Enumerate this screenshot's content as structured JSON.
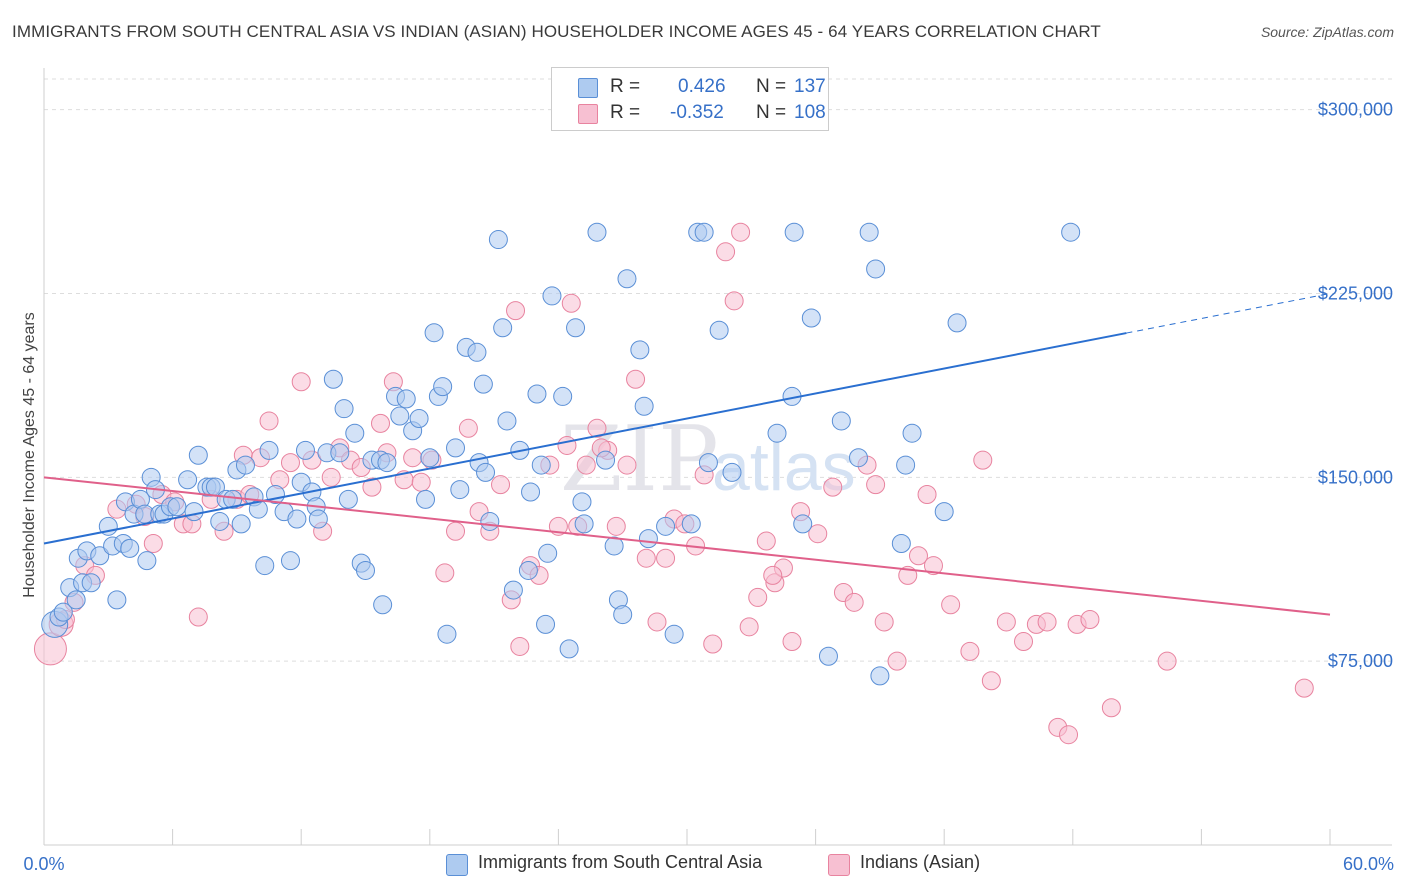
{
  "title": "IMMIGRANTS FROM SOUTH CENTRAL ASIA VS INDIAN (ASIAN) HOUSEHOLDER INCOME AGES 45 - 64 YEARS CORRELATION CHART",
  "source": "Source: ZipAtlas.com",
  "watermark": {
    "zip": "ZIP",
    "atlas": "atlas"
  },
  "legend": {
    "rows": [
      {
        "r_label": "R =",
        "r_value": "0.426",
        "n_label": "N =",
        "n_value": "137"
      },
      {
        "r_label": "R =",
        "r_value": "-0.352",
        "n_label": "N =",
        "n_value": "108"
      }
    ]
  },
  "colors": {
    "blue_fill": "#aecbf0",
    "blue_stroke": "#5a8fd6",
    "blue_line": "#2a6fd0",
    "pink_fill": "#f7c0d2",
    "pink_stroke": "#e8839f",
    "pink_line": "#e0608a",
    "axis_text": "#3670c8",
    "grid": "#dddddd"
  },
  "chart_data": {
    "type": "scatter",
    "title": "IMMIGRANTS FROM SOUTH CENTRAL ASIA VS INDIAN (ASIAN) HOUSEHOLDER INCOME AGES 45 - 64 YEARS CORRELATION CHART",
    "xlabel": "",
    "ylabel": "Householder Income Ages 45 - 64 years",
    "xlim": [
      0,
      60
    ],
    "ylim": [
      0,
      312500
    ],
    "x_tick_labels": [
      {
        "value": 0,
        "label": "0.0%"
      },
      {
        "value": 60,
        "label": "60.0%"
      }
    ],
    "x_minor_ticks": [
      6,
      12,
      18,
      24,
      30,
      36,
      42,
      48,
      54,
      60
    ],
    "y_ticks": [
      {
        "value": 75000,
        "label": "$75,000"
      },
      {
        "value": 150000,
        "label": "$150,000"
      },
      {
        "value": 225000,
        "label": "$225,000"
      },
      {
        "value": 300000,
        "label": "$300,000"
      }
    ],
    "series": [
      {
        "name": "Immigrants from South Central Asia",
        "color": "blue",
        "trend": {
          "x0": 0,
          "y0": 123000,
          "x1": 60,
          "y1": 225000,
          "solid_until": 50.5
        },
        "points": [
          [
            0.5,
            90000
          ],
          [
            0.7,
            93000
          ],
          [
            0.9,
            95000
          ],
          [
            1.2,
            105000
          ],
          [
            1.5,
            100000
          ],
          [
            1.6,
            117000
          ],
          [
            1.8,
            107000
          ],
          [
            2.0,
            120000
          ],
          [
            2.2,
            107000
          ],
          [
            2.6,
            118000
          ],
          [
            3.0,
            130000
          ],
          [
            3.2,
            122000
          ],
          [
            3.4,
            100000
          ],
          [
            3.7,
            123000
          ],
          [
            3.8,
            140000
          ],
          [
            4.0,
            121000
          ],
          [
            4.2,
            135000
          ],
          [
            4.5,
            141000
          ],
          [
            4.7,
            135000
          ],
          [
            4.8,
            116000
          ],
          [
            5.0,
            150000
          ],
          [
            5.2,
            145000
          ],
          [
            5.4,
            135000
          ],
          [
            5.6,
            135000
          ],
          [
            5.9,
            138000
          ],
          [
            6.2,
            138000
          ],
          [
            6.7,
            149000
          ],
          [
            7.0,
            136000
          ],
          [
            7.2,
            159000
          ],
          [
            7.6,
            146000
          ],
          [
            7.8,
            146000
          ],
          [
            8.0,
            146000
          ],
          [
            8.2,
            132000
          ],
          [
            8.5,
            141000
          ],
          [
            8.8,
            141000
          ],
          [
            9.0,
            153000
          ],
          [
            9.2,
            131000
          ],
          [
            9.4,
            155000
          ],
          [
            9.8,
            142000
          ],
          [
            10.0,
            137000
          ],
          [
            10.3,
            114000
          ],
          [
            10.5,
            161000
          ],
          [
            10.8,
            143000
          ],
          [
            11.2,
            136000
          ],
          [
            11.5,
            116000
          ],
          [
            11.8,
            133000
          ],
          [
            12.0,
            148000
          ],
          [
            12.2,
            161000
          ],
          [
            12.5,
            144000
          ],
          [
            12.7,
            138000
          ],
          [
            12.8,
            133000
          ],
          [
            13.2,
            160000
          ],
          [
            13.5,
            190000
          ],
          [
            13.8,
            160000
          ],
          [
            14.0,
            178000
          ],
          [
            14.2,
            141000
          ],
          [
            14.5,
            168000
          ],
          [
            14.8,
            115000
          ],
          [
            15.0,
            112000
          ],
          [
            15.3,
            157000
          ],
          [
            15.7,
            157000
          ],
          [
            15.8,
            98000
          ],
          [
            16.0,
            156000
          ],
          [
            16.4,
            183000
          ],
          [
            16.6,
            175000
          ],
          [
            16.9,
            182000
          ],
          [
            17.2,
            169000
          ],
          [
            17.5,
            174000
          ],
          [
            17.8,
            141000
          ],
          [
            18.0,
            158000
          ],
          [
            18.2,
            209000
          ],
          [
            18.4,
            183000
          ],
          [
            18.6,
            187000
          ],
          [
            18.8,
            86000
          ],
          [
            19.2,
            162000
          ],
          [
            19.4,
            145000
          ],
          [
            19.7,
            203000
          ],
          [
            20.2,
            201000
          ],
          [
            20.3,
            156000
          ],
          [
            20.5,
            188000
          ],
          [
            20.6,
            152000
          ],
          [
            20.8,
            132000
          ],
          [
            21.2,
            247000
          ],
          [
            21.4,
            211000
          ],
          [
            21.6,
            173000
          ],
          [
            21.9,
            104000
          ],
          [
            22.2,
            161000
          ],
          [
            22.6,
            112000
          ],
          [
            22.7,
            144000
          ],
          [
            23.0,
            184000
          ],
          [
            23.2,
            155000
          ],
          [
            23.4,
            90000
          ],
          [
            23.5,
            119000
          ],
          [
            23.7,
            224000
          ],
          [
            24.2,
            183000
          ],
          [
            24.5,
            80000
          ],
          [
            24.8,
            211000
          ],
          [
            25.1,
            140000
          ],
          [
            25.2,
            131000
          ],
          [
            25.8,
            250000
          ],
          [
            26.2,
            157000
          ],
          [
            26.6,
            122000
          ],
          [
            26.8,
            100000
          ],
          [
            27.0,
            94000
          ],
          [
            27.2,
            231000
          ],
          [
            27.8,
            202000
          ],
          [
            28.0,
            179000
          ],
          [
            28.2,
            125000
          ],
          [
            29.0,
            130000
          ],
          [
            29.4,
            86000
          ],
          [
            30.2,
            131000
          ],
          [
            30.5,
            250000
          ],
          [
            30.8,
            250000
          ],
          [
            31.0,
            156000
          ],
          [
            31.5,
            210000
          ],
          [
            32.1,
            152000
          ],
          [
            34.2,
            168000
          ],
          [
            34.9,
            183000
          ],
          [
            35.0,
            250000
          ],
          [
            35.4,
            131000
          ],
          [
            35.8,
            215000
          ],
          [
            36.6,
            77000
          ],
          [
            37.2,
            173000
          ],
          [
            38.0,
            158000
          ],
          [
            38.5,
            250000
          ],
          [
            38.8,
            235000
          ],
          [
            39.0,
            69000
          ],
          [
            40.0,
            123000
          ],
          [
            40.2,
            155000
          ],
          [
            40.5,
            168000
          ],
          [
            42.0,
            136000
          ],
          [
            42.6,
            213000
          ],
          [
            47.9,
            250000
          ]
        ]
      },
      {
        "name": "Indians (Asian)",
        "color": "pink",
        "trend": {
          "x0": 0,
          "y0": 150000,
          "x1": 60,
          "y1": 94000
        },
        "points": [
          [
            0.3,
            80000
          ],
          [
            0.8,
            90000
          ],
          [
            1.0,
            92000
          ],
          [
            1.4,
            99000
          ],
          [
            1.9,
            114000
          ],
          [
            2.4,
            110000
          ],
          [
            3.4,
            137000
          ],
          [
            4.3,
            139000
          ],
          [
            4.7,
            134000
          ],
          [
            5.1,
            123000
          ],
          [
            5.5,
            143000
          ],
          [
            6.1,
            140000
          ],
          [
            6.5,
            131000
          ],
          [
            6.9,
            131000
          ],
          [
            7.2,
            93000
          ],
          [
            7.8,
            141000
          ],
          [
            8.4,
            128000
          ],
          [
            9.0,
            141000
          ],
          [
            9.3,
            159000
          ],
          [
            9.6,
            143000
          ],
          [
            10.1,
            158000
          ],
          [
            10.5,
            173000
          ],
          [
            11.0,
            149000
          ],
          [
            11.5,
            156000
          ],
          [
            12.0,
            189000
          ],
          [
            12.5,
            157000
          ],
          [
            13.0,
            128000
          ],
          [
            13.4,
            150000
          ],
          [
            13.8,
            162000
          ],
          [
            14.3,
            157000
          ],
          [
            14.8,
            154000
          ],
          [
            15.3,
            146000
          ],
          [
            15.7,
            172000
          ],
          [
            16.0,
            160000
          ],
          [
            16.3,
            189000
          ],
          [
            16.8,
            149000
          ],
          [
            17.2,
            158000
          ],
          [
            17.6,
            148000
          ],
          [
            18.1,
            157000
          ],
          [
            18.7,
            111000
          ],
          [
            19.2,
            128000
          ],
          [
            19.8,
            170000
          ],
          [
            20.3,
            136000
          ],
          [
            20.8,
            128000
          ],
          [
            21.3,
            147000
          ],
          [
            21.8,
            100000
          ],
          [
            22.2,
            81000
          ],
          [
            22.7,
            114000
          ],
          [
            23.1,
            110000
          ],
          [
            23.6,
            155000
          ],
          [
            24.0,
            130000
          ],
          [
            24.4,
            163000
          ],
          [
            24.9,
            130000
          ],
          [
            25.3,
            155000
          ],
          [
            25.8,
            170000
          ],
          [
            26.3,
            161000
          ],
          [
            26.7,
            130000
          ],
          [
            27.2,
            155000
          ],
          [
            27.6,
            190000
          ],
          [
            28.1,
            117000
          ],
          [
            28.6,
            91000
          ],
          [
            29.0,
            117000
          ],
          [
            29.4,
            133000
          ],
          [
            29.9,
            131000
          ],
          [
            30.4,
            122000
          ],
          [
            30.8,
            151000
          ],
          [
            31.2,
            82000
          ],
          [
            31.8,
            242000
          ],
          [
            32.2,
            222000
          ],
          [
            32.5,
            250000
          ],
          [
            32.9,
            89000
          ],
          [
            33.3,
            101000
          ],
          [
            33.7,
            124000
          ],
          [
            34.1,
            107000
          ],
          [
            34.5,
            113000
          ],
          [
            34.9,
            83000
          ],
          [
            35.3,
            136000
          ],
          [
            36.1,
            127000
          ],
          [
            36.8,
            146000
          ],
          [
            37.3,
            103000
          ],
          [
            37.8,
            99000
          ],
          [
            38.4,
            155000
          ],
          [
            38.8,
            147000
          ],
          [
            39.2,
            91000
          ],
          [
            39.8,
            75000
          ],
          [
            40.3,
            110000
          ],
          [
            40.8,
            118000
          ],
          [
            41.2,
            143000
          ],
          [
            41.5,
            114000
          ],
          [
            42.3,
            98000
          ],
          [
            43.2,
            79000
          ],
          [
            43.8,
            157000
          ],
          [
            44.2,
            67000
          ],
          [
            44.9,
            91000
          ],
          [
            45.7,
            83000
          ],
          [
            46.3,
            90000
          ],
          [
            46.8,
            91000
          ],
          [
            47.3,
            48000
          ],
          [
            47.8,
            45000
          ],
          [
            48.2,
            90000
          ],
          [
            48.8,
            92000
          ],
          [
            49.8,
            56000
          ],
          [
            52.4,
            75000
          ],
          [
            58.8,
            64000
          ],
          [
            22.0,
            218000
          ],
          [
            26.0,
            162000
          ],
          [
            34.0,
            110000
          ],
          [
            24.6,
            221000
          ]
        ]
      }
    ]
  },
  "bottom_legend": [
    {
      "label": "Immigrants from South Central Asia"
    },
    {
      "label": "Indians (Asian)"
    }
  ]
}
